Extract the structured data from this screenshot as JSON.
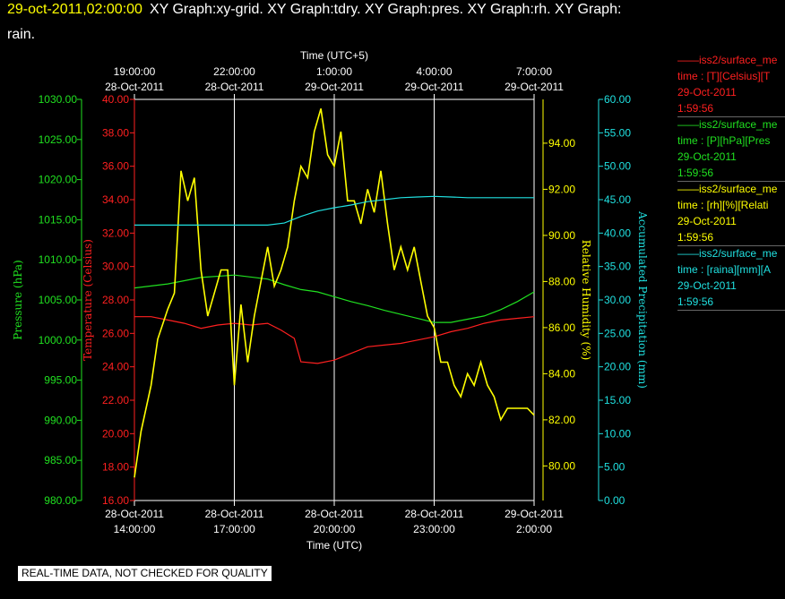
{
  "header": {
    "time": "29-oct-2011,02:00:00",
    "title": "XY Graph:xy-grid.  XY Graph:tdry.  XY Graph:pres.  XY Graph:rh.  XY Graph:",
    "title_line2": "rain."
  },
  "qc_note": "REAL-TIME DATA, NOT CHECKED FOR QUALITY",
  "legend": [
    {
      "name": "iss2/surface_me",
      "var": "time : [T][Celsius][T",
      "date": "29-Oct-2011",
      "time": "1:59:56",
      "color": "#ff2020"
    },
    {
      "name": "iss2/surface_me",
      "var": "time : [P][hPa][Pres",
      "date": "29-Oct-2011",
      "time": "1:59:56",
      "color": "#20e020"
    },
    {
      "name": "iss2/surface_me",
      "var": "time : [rh][%][Relati",
      "date": "29-Oct-2011",
      "time": "1:59:56",
      "color": "#ffff00"
    },
    {
      "name": "iss2/surface_me",
      "var": "time : [raina][mm][A",
      "date": "29-Oct-2011",
      "time": "1:59:56",
      "color": "#20e0e0"
    }
  ],
  "chart_data": {
    "type": "line",
    "x_bottom": {
      "label": "Time (UTC)",
      "ticks": [
        {
          "date": "28-Oct-2011",
          "time": "14:00:00"
        },
        {
          "date": "28-Oct-2011",
          "time": "17:00:00"
        },
        {
          "date": "28-Oct-2011",
          "time": "20:00:00"
        },
        {
          "date": "28-Oct-2011",
          "time": "23:00:00"
        },
        {
          "date": "29-Oct-2011",
          "time": "2:00:00"
        }
      ]
    },
    "x_top": {
      "label": "Time (UTC+5)",
      "ticks": [
        {
          "time": "19:00:00",
          "date": "28-Oct-2011"
        },
        {
          "time": "22:00:00",
          "date": "28-Oct-2011"
        },
        {
          "time": "1:00:00",
          "date": "29-Oct-2011"
        },
        {
          "time": "4:00:00",
          "date": "29-Oct-2011"
        },
        {
          "time": "7:00:00",
          "date": "29-Oct-2011"
        }
      ]
    },
    "x_range_hours_utc": [
      14,
      26
    ],
    "grid": true,
    "axes": {
      "pressure": {
        "label": "Pressure (hPa)",
        "color": "#20e020",
        "ylim": [
          980,
          1030
        ],
        "ticks": [
          "980.00",
          "985.00",
          "990.00",
          "995.00",
          "1000.00",
          "1005.00",
          "1010.00",
          "1015.00",
          "1020.00",
          "1025.00",
          "1030.00"
        ]
      },
      "temperature": {
        "label": "Temperature (Celsius)",
        "color": "#ff2020",
        "ylim": [
          16,
          40
        ],
        "ticks": [
          "16.00",
          "18.00",
          "20.00",
          "22.00",
          "24.00",
          "26.00",
          "28.00",
          "30.00",
          "32.00",
          "34.00",
          "36.00",
          "38.00",
          "40.00"
        ]
      },
      "rh": {
        "label": "Relative Humidity (%)",
        "color": "#ffff00",
        "ylim": [
          78.5,
          95.9
        ],
        "ticks": [
          "80.00",
          "82.00",
          "84.00",
          "86.00",
          "88.00",
          "90.00",
          "92.00",
          "94.00"
        ]
      },
      "precip": {
        "label": "Accumulated Precipitation (mm)",
        "color": "#20e0e0",
        "ylim": [
          0,
          60
        ],
        "ticks": [
          "0.00",
          "5.00",
          "10.00",
          "15.00",
          "20.00",
          "25.00",
          "30.00",
          "35.00",
          "40.00",
          "45.00",
          "50.00",
          "55.00",
          "60.00"
        ]
      }
    },
    "series": [
      {
        "name": "T",
        "axis": "temperature",
        "color": "#ff2020",
        "x": [
          14,
          14.5,
          15,
          15.5,
          16,
          16.5,
          17,
          17.5,
          18,
          18.4,
          18.8,
          19,
          19.5,
          20,
          20.5,
          21,
          21.5,
          22,
          22.5,
          23,
          23.5,
          24,
          24.5,
          25,
          25.5,
          26
        ],
        "values": [
          27.0,
          27.0,
          26.8,
          26.6,
          26.3,
          26.5,
          26.6,
          26.5,
          26.6,
          26.2,
          25.7,
          24.3,
          24.2,
          24.4,
          24.8,
          25.2,
          25.3,
          25.4,
          25.6,
          25.8,
          26.1,
          26.3,
          26.6,
          26.8,
          26.9,
          27.0
        ]
      },
      {
        "name": "P",
        "axis": "pressure",
        "color": "#20e020",
        "x": [
          14,
          15,
          16,
          17,
          18,
          18.5,
          19,
          19.5,
          20,
          20.5,
          21,
          21.5,
          22,
          22.5,
          23,
          23.5,
          24,
          24.5,
          25,
          25.5,
          26
        ],
        "values": [
          1006.5,
          1007.0,
          1007.8,
          1008.1,
          1007.6,
          1006.9,
          1006.3,
          1006.0,
          1005.4,
          1004.8,
          1004.3,
          1003.7,
          1003.2,
          1002.7,
          1002.2,
          1002.2,
          1002.6,
          1003.0,
          1003.8,
          1004.8,
          1006.0
        ]
      },
      {
        "name": "rh",
        "axis": "rh",
        "color": "#ffff00",
        "x": [
          14,
          14.2,
          14.5,
          14.7,
          15,
          15.2,
          15.4,
          15.6,
          15.8,
          16,
          16.2,
          16.4,
          16.6,
          16.8,
          17,
          17.2,
          17.4,
          17.6,
          17.8,
          18,
          18.2,
          18.4,
          18.6,
          18.8,
          19,
          19.2,
          19.4,
          19.6,
          19.8,
          20,
          20.2,
          20.4,
          20.6,
          20.8,
          21,
          21.2,
          21.4,
          21.6,
          21.8,
          22,
          22.2,
          22.4,
          22.6,
          22.8,
          23,
          23.2,
          23.4,
          23.6,
          23.8,
          24,
          24.2,
          24.4,
          24.6,
          24.8,
          25,
          25.2,
          25.4,
          25.6,
          25.8,
          26
        ],
        "values": [
          79.5,
          81.5,
          83.5,
          85.5,
          86.8,
          87.5,
          92.8,
          91.5,
          92.5,
          88.5,
          86.5,
          87.5,
          88.5,
          88.5,
          83.5,
          87.0,
          84.5,
          86.5,
          88.0,
          89.5,
          87.8,
          88.5,
          89.5,
          91.5,
          93.0,
          92.5,
          94.5,
          95.5,
          93.5,
          93.0,
          94.5,
          91.5,
          91.5,
          90.5,
          92.0,
          91.0,
          92.8,
          90.5,
          88.5,
          89.5,
          88.5,
          89.5,
          88.0,
          86.5,
          86.0,
          84.5,
          84.5,
          83.5,
          83.0,
          84.0,
          83.5,
          84.5,
          83.5,
          83.0,
          82.0,
          82.5,
          82.5,
          82.5,
          82.5,
          82.2
        ]
      },
      {
        "name": "raina",
        "axis": "precip",
        "color": "#20e0e0",
        "x": [
          14,
          15,
          16,
          17,
          18,
          18.5,
          19,
          19.5,
          20,
          20.5,
          21,
          21.5,
          22,
          22.5,
          23,
          23.5,
          24,
          24.5,
          25,
          25.5,
          26
        ],
        "values": [
          41.2,
          41.2,
          41.2,
          41.2,
          41.2,
          41.5,
          42.5,
          43.3,
          43.8,
          44.2,
          44.7,
          45.0,
          45.3,
          45.4,
          45.5,
          45.4,
          45.3,
          45.3,
          45.3,
          45.3,
          45.3
        ]
      }
    ]
  }
}
